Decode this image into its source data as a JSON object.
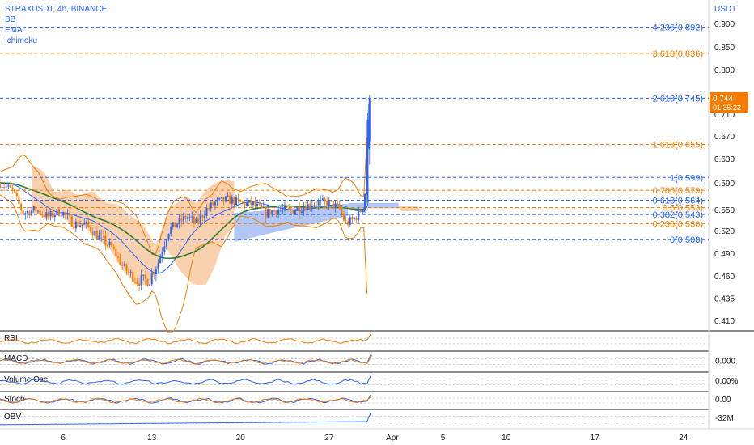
{
  "header": {
    "symbol": "STRAXUSDT, 4h, BINANCE",
    "indicators": [
      "BB",
      "EMA",
      "Ichimoku"
    ],
    "currency": "USDT"
  },
  "price_badge": {
    "price": "0.744",
    "countdown": "01:35:22",
    "color": "#f57c00"
  },
  "chart_data": [
    {
      "type": "candlestick",
      "title": "STRAXUSDT, 4h, BINANCE",
      "y_axis_label": "USDT",
      "ylim": [
        0.4,
        0.92
      ],
      "y_ticks": [
        0.9,
        0.85,
        0.8,
        0.76,
        0.71,
        0.67,
        0.63,
        0.59,
        0.55,
        0.52,
        0.49,
        0.46,
        0.435,
        0.41
      ],
      "y_tick_labels": [
        "0.900",
        "0.850",
        "0.800",
        "",
        "0.710",
        "0.670",
        "0.630",
        "0.590",
        "0.550",
        "0.520",
        "0.490",
        "0.460",
        "0.435",
        "0.410"
      ],
      "x_ticks": [
        {
          "label": "6",
          "day": 6
        },
        {
          "label": "13",
          "day": 13
        },
        {
          "label": "20",
          "day": 20
        },
        {
          "label": "27",
          "day": 27
        },
        {
          "label": "Apr",
          "day": 32
        },
        {
          "label": "5",
          "day": 36
        },
        {
          "label": "10",
          "day": 41
        },
        {
          "label": "17",
          "day": 48
        },
        {
          "label": "24",
          "day": 55
        }
      ],
      "x_range_days": [
        1,
        57
      ],
      "last_price": 0.744,
      "fibonacci_levels": [
        {
          "label": "4.236(0.892)",
          "value": 0.892,
          "color": "#2962ff"
        },
        {
          "label": "3.618(0.836)",
          "value": 0.836,
          "color": "#f57c00"
        },
        {
          "label": "2.618(0.745)",
          "value": 0.745,
          "color": "#2962ff"
        },
        {
          "label": "1.618(0.655)",
          "value": 0.655,
          "color": "#f57c00"
        },
        {
          "label": "1(0.599)",
          "value": 0.599,
          "color": "#2962ff"
        },
        {
          "label": "0.786(0.579)",
          "value": 0.579,
          "color": "#f57c00"
        },
        {
          "label": "0.618(0.564)",
          "value": 0.564,
          "color": "#2962ff"
        },
        {
          "label": "0.5(0.553)",
          "value": 0.553,
          "color": "#f57c00"
        },
        {
          "label": "0.382(0.543)",
          "value": 0.543,
          "color": "#2962ff"
        },
        {
          "label": "0.236(0.530)",
          "value": 0.53,
          "color": "#f57c00"
        },
        {
          "label": "0(0.508)",
          "value": 0.508,
          "color": "#2962ff"
        }
      ],
      "price_path": [
        {
          "day": 1.0,
          "price": 0.59
        },
        {
          "day": 2.0,
          "price": 0.578
        },
        {
          "day": 2.8,
          "price": 0.545
        },
        {
          "day": 3.8,
          "price": 0.55
        },
        {
          "day": 4.8,
          "price": 0.54
        },
        {
          "day": 5.8,
          "price": 0.548
        },
        {
          "day": 6.8,
          "price": 0.53
        },
        {
          "day": 7.8,
          "price": 0.528
        },
        {
          "day": 8.8,
          "price": 0.512
        },
        {
          "day": 9.8,
          "price": 0.498
        },
        {
          "day": 10.8,
          "price": 0.47
        },
        {
          "day": 11.8,
          "price": 0.455
        },
        {
          "day": 12.8,
          "price": 0.455
        },
        {
          "day": 13.5,
          "price": 0.478
        },
        {
          "day": 14.3,
          "price": 0.52
        },
        {
          "day": 15.0,
          "price": 0.53
        },
        {
          "day": 15.8,
          "price": 0.54
        },
        {
          "day": 16.5,
          "price": 0.53
        },
        {
          "day": 17.3,
          "price": 0.55
        },
        {
          "day": 18.0,
          "price": 0.56
        },
        {
          "day": 19.0,
          "price": 0.565
        },
        {
          "day": 20.0,
          "price": 0.56
        },
        {
          "day": 21.0,
          "price": 0.558
        },
        {
          "day": 22.0,
          "price": 0.545
        },
        {
          "day": 23.0,
          "price": 0.55
        },
        {
          "day": 24.0,
          "price": 0.548
        },
        {
          "day": 25.0,
          "price": 0.555
        },
        {
          "day": 26.0,
          "price": 0.56
        },
        {
          "day": 27.0,
          "price": 0.56
        },
        {
          "day": 27.8,
          "price": 0.552
        },
        {
          "day": 28.3,
          "price": 0.53
        },
        {
          "day": 28.9,
          "price": 0.535
        },
        {
          "day": 29.4,
          "price": 0.545
        },
        {
          "day": 29.8,
          "price": 0.56
        },
        {
          "day": 30.0,
          "price": 0.65
        },
        {
          "day": 30.2,
          "price": 0.744
        }
      ],
      "sub_panels": [
        {
          "name": "RSI"
        },
        {
          "name": "MACD",
          "value_label": "0.000"
        },
        {
          "name": "Volume Osc",
          "value_label": "0.00%"
        },
        {
          "name": "Stoch",
          "value_label": "0.00"
        },
        {
          "name": "OBV",
          "value_label": "-32M"
        }
      ],
      "colors": {
        "up": "#2962ff",
        "down": "#f57c00",
        "ema": "#2e7d32",
        "cloud_bear": "#f8c9a0",
        "cloud_bull": "#a6bdf5"
      }
    }
  ]
}
